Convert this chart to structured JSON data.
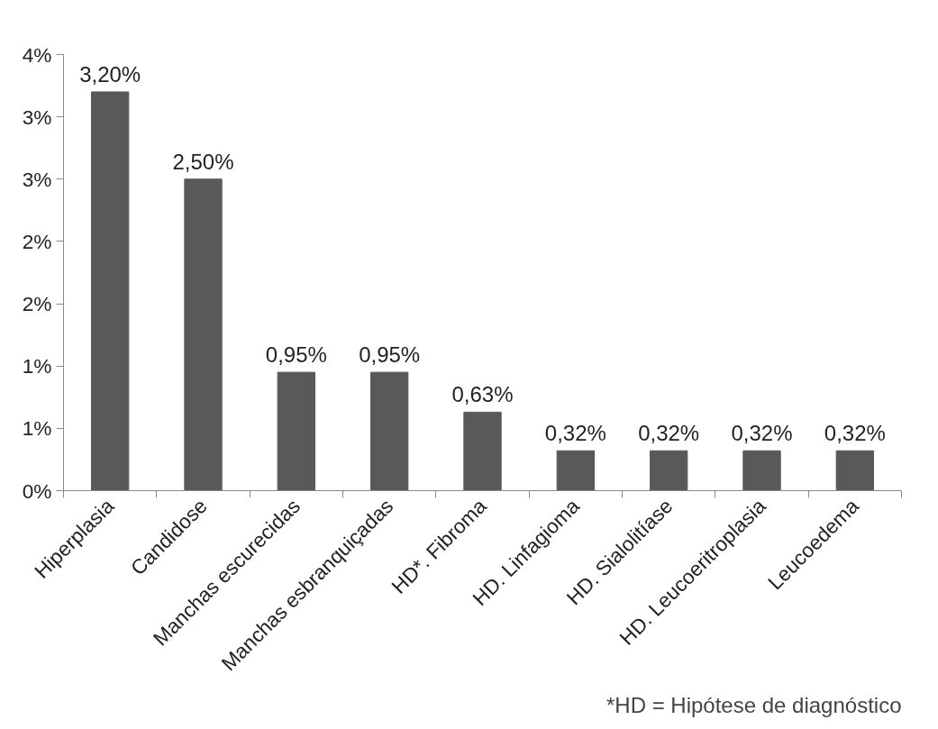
{
  "chart_data": {
    "type": "bar",
    "categories": [
      "Hiperplasia",
      "Candidose",
      "Manchas escurecidas",
      "Manchas esbranquiçadas",
      "HD*. Fibroma",
      "HD. Linfagioma",
      "HD. Sialolitíase",
      "HD. Leucoeritroplasia",
      "Leucoedema"
    ],
    "values": [
      3.2,
      2.5,
      0.95,
      0.95,
      0.63,
      0.32,
      0.32,
      0.32,
      0.32
    ],
    "value_labels": [
      "3,20%",
      "2,50%",
      "0,95%",
      "0,95%",
      "0,63%",
      "0,32%",
      "0,32%",
      "0,32%",
      "0,32%"
    ],
    "color": "#595959",
    "ylim": [
      0,
      3.5
    ],
    "yticks": [
      {
        "value": 0,
        "label": "0%"
      },
      {
        "value": 0.5,
        "label": "1%"
      },
      {
        "value": 1,
        "label": "1%"
      },
      {
        "value": 1.5,
        "label": "2%"
      },
      {
        "value": 2,
        "label": "2%"
      },
      {
        "value": 2.5,
        "label": "3%"
      },
      {
        "value": 3,
        "label": "3%"
      },
      {
        "value": 3.5,
        "label": "4%"
      }
    ],
    "grid": false,
    "annotations": [
      "*HD = Hipótese de diagnóstico"
    ]
  }
}
